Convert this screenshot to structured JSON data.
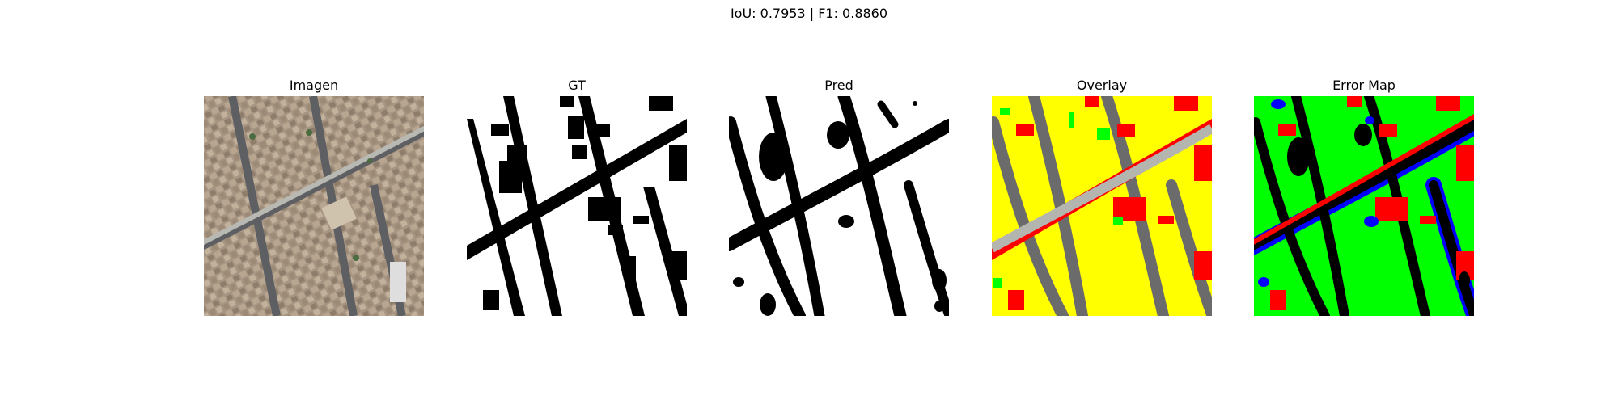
{
  "figure": {
    "suptitle": "IoU: 0.7953 | F1: 0.8860"
  },
  "panels": [
    {
      "title": "Imagen"
    },
    {
      "title": "GT"
    },
    {
      "title": "Pred"
    },
    {
      "title": "Overlay"
    },
    {
      "title": "Error Map"
    }
  ],
  "colors": {
    "background": "#ffffff",
    "mask_fg": "#ffffff",
    "mask_bg": "#000000",
    "overlay_match": "#ffff00",
    "overlay_miss": "#ff0000",
    "overlay_extra": "#00ff00",
    "error_tp": "#00ff00",
    "error_fn": "#ff0000",
    "error_fp": "#0000ff",
    "aerial_base": "#a89884",
    "aerial_road": "#8f8f8a"
  }
}
